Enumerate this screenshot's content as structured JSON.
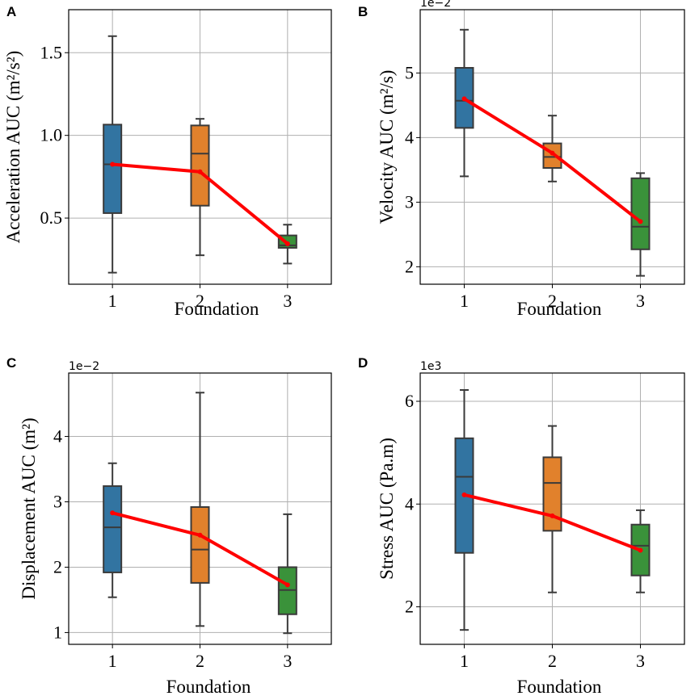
{
  "chart_data": [
    {
      "panel": "A",
      "type": "box",
      "categories": [
        "1",
        "2",
        "3"
      ],
      "xlabel": "Foundation",
      "ylabel": "Acceleration AUC (m²/s²)",
      "ylim": [
        0.1,
        1.76
      ],
      "yticks": [
        0.5,
        1.0,
        1.5
      ],
      "ytick_labels": [
        "0.5",
        "1.0",
        "1.5"
      ],
      "offset_text": "",
      "grid": true,
      "boxes": [
        {
          "whislo": 0.17,
          "q1": 0.53,
          "med": 0.825,
          "q3": 1.065,
          "whishi": 1.6,
          "color": "#3274a1"
        },
        {
          "whislo": 0.275,
          "q1": 0.575,
          "med": 0.89,
          "q3": 1.06,
          "whishi": 1.1,
          "color": "#e1812c"
        },
        {
          "whislo": 0.225,
          "q1": 0.32,
          "med": 0.335,
          "q3": 0.395,
          "whishi": 0.46,
          "color": "#3a923a"
        }
      ],
      "trend": [
        0.825,
        0.78,
        0.345
      ],
      "trend_color": "#ff0000"
    },
    {
      "panel": "B",
      "type": "box",
      "categories": [
        "1",
        "2",
        "3"
      ],
      "xlabel": "Foundation",
      "ylabel": "Velocity AUC (m²/s)",
      "ylim": [
        1.73,
        5.98
      ],
      "yticks": [
        2,
        3,
        4,
        5
      ],
      "ytick_labels": [
        "2",
        "3",
        "4",
        "5"
      ],
      "offset_text": "1e−2",
      "grid": true,
      "boxes": [
        {
          "whislo": 3.4,
          "q1": 4.15,
          "med": 4.57,
          "q3": 5.08,
          "whishi": 5.67,
          "color": "#3274a1"
        },
        {
          "whislo": 3.32,
          "q1": 3.53,
          "med": 3.7,
          "q3": 3.91,
          "whishi": 4.34,
          "color": "#e1812c"
        },
        {
          "whislo": 1.86,
          "q1": 2.27,
          "med": 2.62,
          "q3": 3.37,
          "whishi": 3.45,
          "color": "#3a923a"
        }
      ],
      "trend": [
        4.6,
        3.76,
        2.7
      ],
      "trend_color": "#ff0000"
    },
    {
      "panel": "C",
      "type": "box",
      "categories": [
        "1",
        "2",
        "3"
      ],
      "xlabel": "Foundation",
      "ylabel": "Displacement AUC (m²)",
      "ylim": [
        0.82,
        4.97
      ],
      "yticks": [
        1,
        2,
        3,
        4
      ],
      "ytick_labels": [
        "1",
        "2",
        "3",
        "4"
      ],
      "offset_text": "1e−2",
      "grid": true,
      "boxes": [
        {
          "whislo": 1.54,
          "q1": 1.92,
          "med": 2.61,
          "q3": 3.24,
          "whishi": 3.59,
          "color": "#3274a1"
        },
        {
          "whislo": 1.1,
          "q1": 1.76,
          "med": 2.27,
          "q3": 2.92,
          "whishi": 4.67,
          "color": "#e1812c"
        },
        {
          "whislo": 0.99,
          "q1": 1.28,
          "med": 1.65,
          "q3": 2.0,
          "whishi": 2.81,
          "color": "#3a923a"
        }
      ],
      "trend": [
        2.83,
        2.49,
        1.73
      ],
      "trend_color": "#ff0000"
    },
    {
      "panel": "D",
      "type": "box",
      "categories": [
        "1",
        "2",
        "3"
      ],
      "xlabel": "Foundation",
      "ylabel": "Stress AUC (Pa.m)",
      "ylim": [
        1.27,
        6.55
      ],
      "yticks": [
        2,
        4,
        6
      ],
      "ytick_labels": [
        "2",
        "4",
        "6"
      ],
      "offset_text": "1e3",
      "grid": true,
      "boxes": [
        {
          "whislo": 1.55,
          "q1": 3.05,
          "med": 4.53,
          "q3": 5.28,
          "whishi": 6.22,
          "color": "#3274a1"
        },
        {
          "whislo": 2.28,
          "q1": 3.48,
          "med": 4.41,
          "q3": 4.91,
          "whishi": 5.52,
          "color": "#e1812c"
        },
        {
          "whislo": 2.28,
          "q1": 2.61,
          "med": 3.19,
          "q3": 3.6,
          "whishi": 3.88,
          "color": "#3a923a"
        }
      ],
      "trend": [
        4.18,
        3.77,
        3.1
      ],
      "trend_color": "#ff0000"
    }
  ]
}
